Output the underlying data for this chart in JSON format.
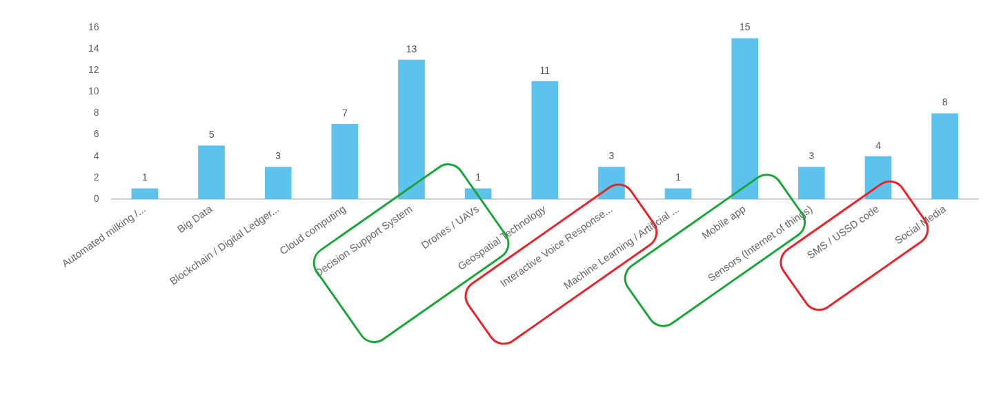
{
  "chart_data": {
    "type": "bar",
    "categories": [
      "Automated milking /...",
      "Big Data",
      "Blockchain / Digital Ledger...",
      "Cloud computing",
      "Decision Support System",
      "Drones / UAVs",
      "Geospatial Technology",
      "Interactive Voice Response...",
      "Machine Learning / Artificial ...",
      "Mobile app",
      "Sensors (Internet of things)",
      "SMS / USSD code",
      "Social Media"
    ],
    "values": [
      1,
      5,
      3,
      7,
      13,
      1,
      11,
      3,
      1,
      15,
      3,
      4,
      8
    ],
    "color": "#5ec3ec",
    "ylim": [
      0,
      16
    ],
    "yticks": [
      0,
      2,
      4,
      6,
      8,
      10,
      12,
      14,
      16
    ],
    "data_labels": true,
    "grid": false,
    "legend": false
  }
}
